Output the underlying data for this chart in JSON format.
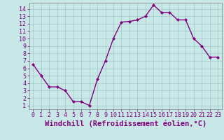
{
  "x": [
    0,
    1,
    2,
    3,
    4,
    5,
    6,
    7,
    8,
    9,
    10,
    11,
    12,
    13,
    14,
    15,
    16,
    17,
    18,
    19,
    20,
    21,
    22,
    23
  ],
  "y": [
    6.5,
    5.0,
    3.5,
    3.5,
    3.0,
    1.5,
    1.5,
    1.0,
    4.5,
    7.0,
    10.0,
    12.2,
    12.3,
    12.5,
    13.0,
    14.5,
    13.5,
    13.5,
    12.5,
    12.5,
    10.0,
    9.0,
    7.5,
    7.5
  ],
  "line_color": "#800080",
  "marker": "D",
  "marker_size": 2.0,
  "bg_color": "#c8e8e8",
  "grid_color": "#a0c8c8",
  "xlabel": "Windchill (Refroidissement éolien,°C)",
  "xlabel_fontsize": 7.5,
  "xlabel_color": "#800080",
  "xlim": [
    -0.5,
    23.5
  ],
  "ylim": [
    0.5,
    14.8
  ],
  "yticks": [
    1,
    2,
    3,
    4,
    5,
    6,
    7,
    8,
    9,
    10,
    11,
    12,
    13,
    14
  ],
  "xticks": [
    0,
    1,
    2,
    3,
    4,
    5,
    6,
    7,
    8,
    9,
    10,
    11,
    12,
    13,
    14,
    15,
    16,
    17,
    18,
    19,
    20,
    21,
    22,
    23
  ],
  "tick_color": "#800080",
  "tick_fontsize": 6.0,
  "line_width": 1.0,
  "spine_color": "#808080"
}
